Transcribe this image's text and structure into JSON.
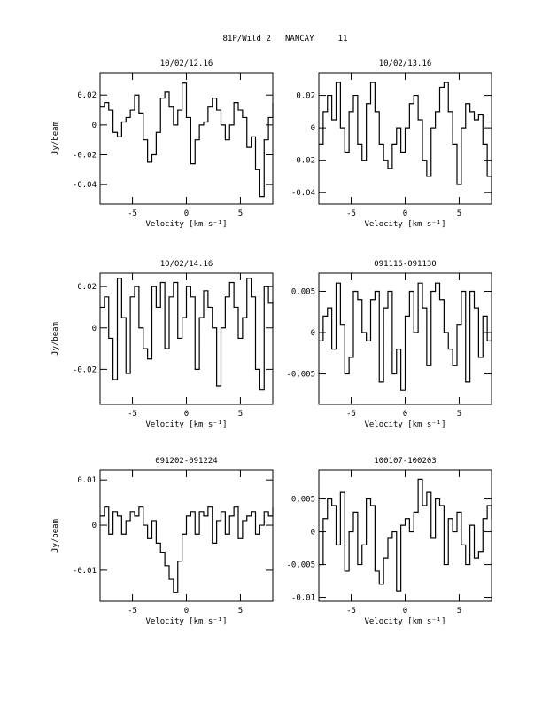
{
  "title": "81P/Wild 2   NANCAY     11",
  "chart_data": [
    {
      "type": "step",
      "title": "10/02/12.16",
      "xlabel": "Velocity [km s⁻¹]",
      "ylabel": "Jy/beam",
      "x": [
        -8,
        -7.6,
        -7.2,
        -6.8,
        -6.4,
        -6,
        -5.6,
        -5.2,
        -4.8,
        -4.4,
        -4,
        -3.6,
        -3.2,
        -2.8,
        -2.4,
        -2,
        -1.6,
        -1.2,
        -0.8,
        -0.4,
        0,
        0.4,
        0.8,
        1.2,
        1.6,
        2,
        2.4,
        2.8,
        3.2,
        3.6,
        4,
        4.4,
        4.8,
        5.2,
        5.6,
        6,
        6.4,
        6.8,
        7.2,
        7.6,
        8
      ],
      "values": [
        0.012,
        0.015,
        0.01,
        -0.005,
        -0.008,
        0.002,
        0.005,
        0.01,
        0.02,
        0.008,
        -0.01,
        -0.025,
        -0.02,
        -0.005,
        0.018,
        0.022,
        0.012,
        0.0,
        0.01,
        0.028,
        0.005,
        -0.026,
        -0.01,
        0.0,
        0.002,
        0.012,
        0.018,
        0.01,
        0.0,
        -0.01,
        0.0,
        0.015,
        0.01,
        0.005,
        -0.015,
        -0.008,
        -0.03,
        -0.048,
        -0.01,
        0.005,
        0.015
      ],
      "xlim": [
        -8,
        8
      ],
      "xticks": [
        -5,
        0,
        5
      ],
      "ylim": [
        -0.053,
        0.035
      ],
      "yticks": [
        -0.04,
        -0.02,
        0,
        0.02
      ],
      "color": "#000000"
    },
    {
      "type": "step",
      "title": "10/02/13.16",
      "xlabel": "Velocity [km s⁻¹]",
      "x": [
        -8,
        -7.6,
        -7.2,
        -6.8,
        -6.4,
        -6,
        -5.6,
        -5.2,
        -4.8,
        -4.4,
        -4,
        -3.6,
        -3.2,
        -2.8,
        -2.4,
        -2,
        -1.6,
        -1.2,
        -0.8,
        -0.4,
        0,
        0.4,
        0.8,
        1.2,
        1.6,
        2,
        2.4,
        2.8,
        3.2,
        3.6,
        4,
        4.4,
        4.8,
        5.2,
        5.6,
        6,
        6.4,
        6.8,
        7.2,
        7.6,
        8
      ],
      "values": [
        -0.01,
        0.01,
        0.02,
        0.005,
        0.028,
        0.0,
        -0.015,
        0.01,
        0.02,
        -0.01,
        -0.02,
        0.015,
        0.028,
        0.01,
        -0.01,
        -0.02,
        -0.025,
        -0.01,
        0.0,
        -0.015,
        0.0,
        0.015,
        0.02,
        0.005,
        -0.02,
        -0.03,
        0.0,
        0.01,
        0.025,
        0.028,
        0.01,
        -0.01,
        -0.035,
        0.0,
        0.015,
        0.01,
        0.005,
        0.008,
        -0.01,
        -0.03,
        -0.045
      ],
      "xlim": [
        -8,
        8
      ],
      "xticks": [
        -5,
        0,
        5
      ],
      "ylim": [
        -0.047,
        0.034
      ],
      "yticks": [
        -0.04,
        -0.02,
        0,
        0.02
      ],
      "color": "#000000"
    },
    {
      "type": "step",
      "title": "10/02/14.16",
      "xlabel": "Velocity [km s⁻¹]",
      "ylabel": "Jy/beam",
      "x": [
        -8,
        -7.6,
        -7.2,
        -6.8,
        -6.4,
        -6,
        -5.6,
        -5.2,
        -4.8,
        -4.4,
        -4,
        -3.6,
        -3.2,
        -2.8,
        -2.4,
        -2,
        -1.6,
        -1.2,
        -0.8,
        -0.4,
        0,
        0.4,
        0.8,
        1.2,
        1.6,
        2,
        2.4,
        2.8,
        3.2,
        3.6,
        4,
        4.4,
        4.8,
        5.2,
        5.6,
        6,
        6.4,
        6.8,
        7.2,
        7.6,
        8
      ],
      "values": [
        0.01,
        0.015,
        -0.005,
        -0.025,
        0.024,
        0.005,
        -0.022,
        0.015,
        0.02,
        0.0,
        -0.01,
        -0.015,
        0.02,
        0.01,
        0.022,
        -0.01,
        0.015,
        0.022,
        -0.005,
        0.005,
        0.02,
        0.015,
        -0.02,
        0.005,
        0.018,
        0.01,
        0.0,
        -0.028,
        0.0,
        0.015,
        0.022,
        0.01,
        -0.005,
        0.005,
        0.024,
        0.015,
        -0.02,
        -0.03,
        0.02,
        0.012,
        0.0
      ],
      "xlim": [
        -8,
        8
      ],
      "xticks": [
        -5,
        0,
        5
      ],
      "ylim": [
        -0.037,
        0.0265
      ],
      "yticks": [
        -0.02,
        0,
        0.02
      ],
      "color": "#000000"
    },
    {
      "type": "step",
      "title": "091116-091130",
      "xlabel": "Velocity [km s⁻¹]",
      "x": [
        -8,
        -7.6,
        -7.2,
        -6.8,
        -6.4,
        -6,
        -5.6,
        -5.2,
        -4.8,
        -4.4,
        -4,
        -3.6,
        -3.2,
        -2.8,
        -2.4,
        -2,
        -1.6,
        -1.2,
        -0.8,
        -0.4,
        0,
        0.4,
        0.8,
        1.2,
        1.6,
        2,
        2.4,
        2.8,
        3.2,
        3.6,
        4,
        4.4,
        4.8,
        5.2,
        5.6,
        6,
        6.4,
        6.8,
        7.2,
        7.6,
        8
      ],
      "values": [
        -0.001,
        0.002,
        0.003,
        -0.002,
        0.006,
        0.001,
        -0.005,
        -0.003,
        0.005,
        0.004,
        0.0,
        -0.001,
        0.004,
        0.005,
        -0.006,
        0.003,
        0.005,
        -0.005,
        -0.002,
        -0.007,
        0.002,
        0.005,
        0.0,
        0.006,
        0.003,
        -0.004,
        0.005,
        0.006,
        0.004,
        0.0,
        -0.002,
        -0.004,
        0.001,
        0.005,
        -0.006,
        0.005,
        0.003,
        -0.003,
        0.002,
        -0.001,
        0.0
      ],
      "xlim": [
        -8,
        8
      ],
      "xticks": [
        -5,
        0,
        5
      ],
      "ylim": [
        -0.0087,
        0.0072
      ],
      "yticks": [
        -0.005,
        0,
        0.005
      ],
      "color": "#000000"
    },
    {
      "type": "step",
      "title": "091202-091224",
      "xlabel": "Velocity [km s⁻¹]",
      "ylabel": "Jy/beam",
      "x": [
        -8,
        -7.6,
        -7.2,
        -6.8,
        -6.4,
        -6,
        -5.6,
        -5.2,
        -4.8,
        -4.4,
        -4,
        -3.6,
        -3.2,
        -2.8,
        -2.4,
        -2,
        -1.6,
        -1.2,
        -0.8,
        -0.4,
        0,
        0.4,
        0.8,
        1.2,
        1.6,
        2,
        2.4,
        2.8,
        3.2,
        3.6,
        4,
        4.4,
        4.8,
        5.2,
        5.6,
        6,
        6.4,
        6.8,
        7.2,
        7.6,
        8
      ],
      "values": [
        0.002,
        0.004,
        -0.002,
        0.003,
        0.002,
        -0.002,
        0.001,
        0.003,
        0.002,
        0.004,
        0.0,
        -0.003,
        0.001,
        -0.004,
        -0.006,
        -0.009,
        -0.012,
        -0.015,
        -0.008,
        -0.002,
        0.002,
        0.003,
        -0.002,
        0.003,
        0.002,
        0.004,
        -0.004,
        0.001,
        0.003,
        -0.002,
        0.002,
        0.004,
        -0.003,
        0.001,
        0.002,
        0.003,
        -0.002,
        0.0,
        0.003,
        0.002,
        0.004
      ],
      "xlim": [
        -8,
        8
      ],
      "xticks": [
        -5,
        0,
        5
      ],
      "ylim": [
        -0.0169,
        0.0122
      ],
      "yticks": [
        -0.01,
        0,
        0.01
      ],
      "color": "#000000"
    },
    {
      "type": "step",
      "title": "100107-100203",
      "xlabel": "Velocity [km s⁻¹]",
      "x": [
        -8,
        -7.6,
        -7.2,
        -6.8,
        -6.4,
        -6,
        -5.6,
        -5.2,
        -4.8,
        -4.4,
        -4,
        -3.6,
        -3.2,
        -2.8,
        -2.4,
        -2,
        -1.6,
        -1.2,
        -0.8,
        -0.4,
        0,
        0.4,
        0.8,
        1.2,
        1.6,
        2,
        2.4,
        2.8,
        3.2,
        3.6,
        4,
        4.4,
        4.8,
        5.2,
        5.6,
        6,
        6.4,
        6.8,
        7.2,
        7.6,
        8
      ],
      "values": [
        -0.005,
        0.002,
        0.005,
        0.004,
        -0.002,
        0.006,
        -0.006,
        0.0,
        0.003,
        -0.005,
        -0.002,
        0.005,
        0.004,
        -0.006,
        -0.008,
        -0.004,
        -0.001,
        0.0,
        -0.009,
        0.001,
        0.002,
        0.0,
        0.003,
        0.008,
        0.004,
        0.006,
        -0.001,
        0.005,
        0.004,
        -0.005,
        0.002,
        0.0,
        0.003,
        -0.002,
        -0.005,
        0.001,
        -0.004,
        -0.003,
        0.002,
        0.004,
        0.002
      ],
      "xlim": [
        -8,
        8
      ],
      "xticks": [
        -5,
        0,
        5
      ],
      "ylim": [
        -0.0106,
        0.0094
      ],
      "yticks": [
        -0.01,
        -0.005,
        0,
        0.005
      ],
      "color": "#000000"
    }
  ]
}
